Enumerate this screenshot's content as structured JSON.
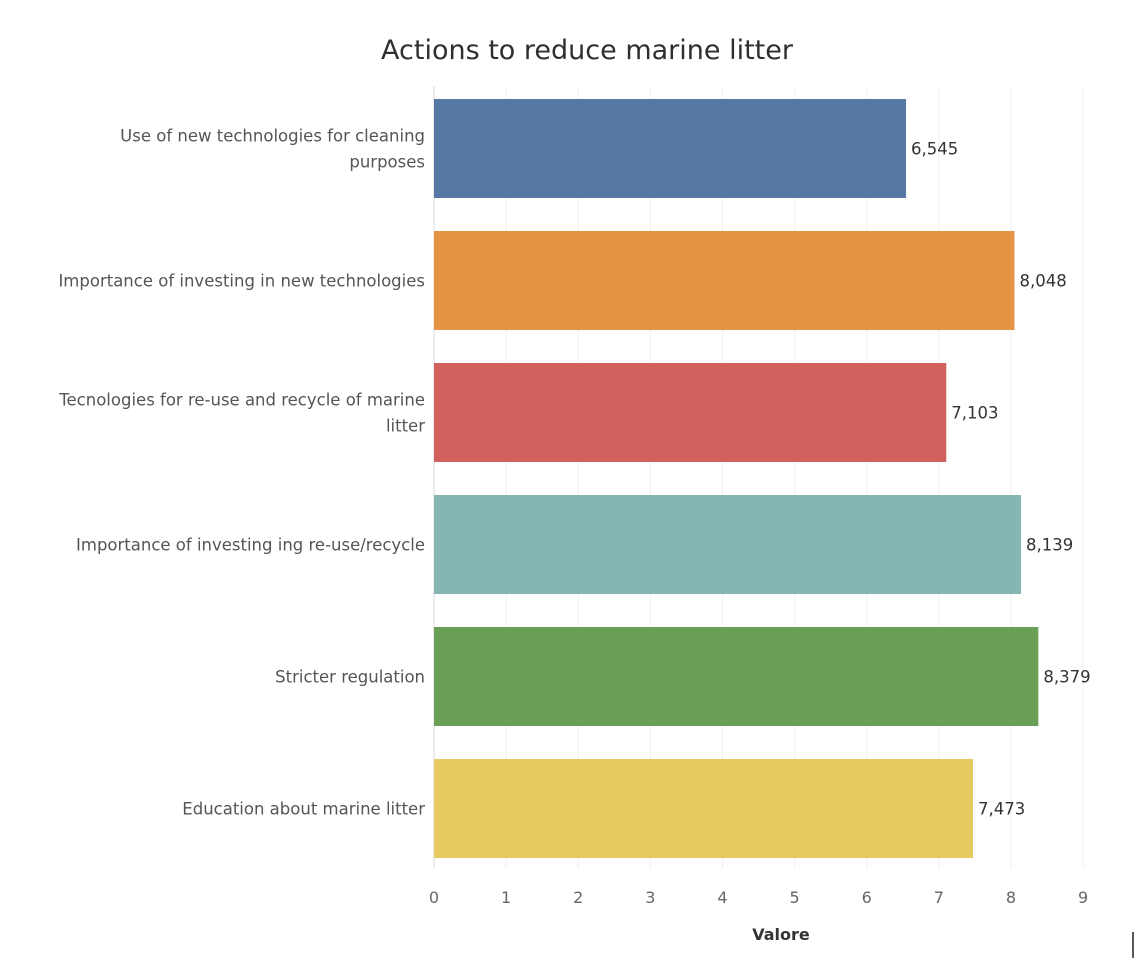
{
  "chart_data": {
    "type": "bar",
    "orientation": "horizontal",
    "title": "Actions to reduce marine litter",
    "xlabel": "Valore",
    "ylabel": "",
    "xlim": [
      0,
      9.65
    ],
    "ticks": [
      0,
      1,
      2,
      3,
      4,
      5,
      6,
      7,
      8,
      9
    ],
    "grid": true,
    "categories": [
      [
        "Use of new technologies for cleaning",
        "purposes"
      ],
      [
        "Importance of investing in new technologies"
      ],
      [
        "Tecnologies for re-use and recycle of marine",
        "litter"
      ],
      [
        "Importance of investing ing re-use/recycle"
      ],
      [
        "Stricter regulation"
      ],
      [
        "Education about marine litter"
      ]
    ],
    "values": [
      6.545,
      8.048,
      7.103,
      8.139,
      8.379,
      7.473
    ],
    "value_labels": [
      "6,545",
      "8,048",
      "7,103",
      "8,139",
      "8,379",
      "7,473"
    ],
    "colors": [
      "#5778a4",
      "#e49444",
      "#d1615d",
      "#85b6b2",
      "#6a9f58",
      "#e7ca60"
    ]
  }
}
